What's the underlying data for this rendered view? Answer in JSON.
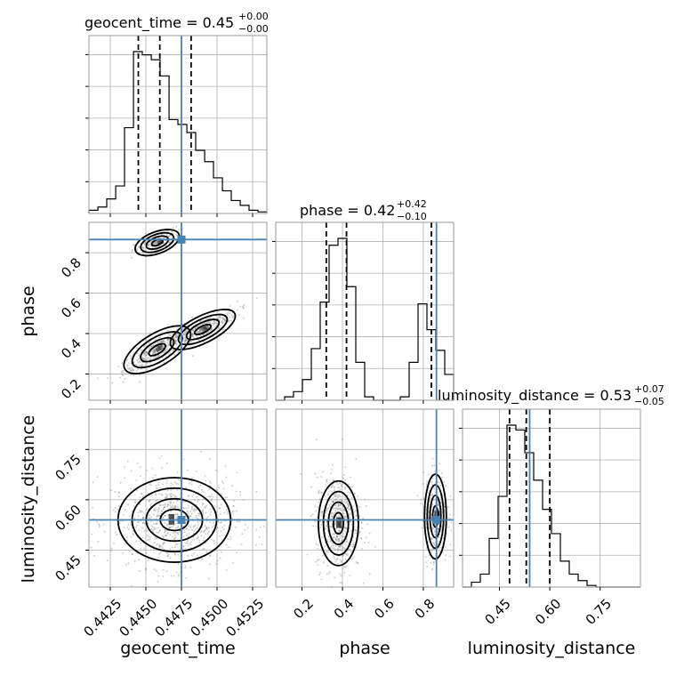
{
  "chart_data": {
    "type": "corner",
    "parameters": [
      "geocent_time",
      "phase",
      "luminosity_distance"
    ],
    "axis_labels": {
      "geocent_time": "geocent_time",
      "phase": "phase",
      "luminosity_distance": "luminosity_distance"
    },
    "ranges": {
      "geocent_time": [
        0.441,
        0.4535
      ],
      "phase": [
        0.07,
        0.95
      ],
      "luminosity_distance": [
        0.34,
        0.87
      ]
    },
    "ticks": {
      "geocent_time": [
        "0.4425",
        "0.4450",
        "0.4475",
        "0.4500",
        "0.4525"
      ],
      "phase": [
        "0.2",
        "0.4",
        "0.6",
        "0.8"
      ],
      "luminosity_distance": [
        "0.45",
        "0.60",
        "0.75"
      ]
    },
    "truths": {
      "geocent_time": 0.4475,
      "phase": 0.865,
      "luminosity_distance": 0.54
    },
    "titles": {
      "geocent_time": {
        "label": "geocent_time = ",
        "value": "0.45",
        "plus": "+0.00",
        "minus": "−0.00"
      },
      "phase": {
        "label": "phase = ",
        "value": "0.42",
        "plus": "+0.42",
        "minus": "−0.10"
      },
      "luminosity_distance": {
        "label": "luminosity_distance = ",
        "value": "0.53",
        "plus": "+0.07",
        "minus": "−0.05"
      }
    },
    "quantiles": {
      "geocent_time": [
        0.44447,
        0.44598,
        0.44818
      ],
      "phase": [
        0.32,
        0.42,
        0.84
      ],
      "luminosity_distance": [
        0.48,
        0.53,
        0.6
      ]
    },
    "histograms": {
      "geocent_time": {
        "edges": [
          0.441,
          0.44163,
          0.44225,
          0.44288,
          0.4435,
          0.44413,
          0.44475,
          0.44538,
          0.446,
          0.44663,
          0.44725,
          0.44788,
          0.4485,
          0.44913,
          0.44975,
          0.45038,
          0.451,
          0.45163,
          0.45225,
          0.45288,
          0.4535
        ],
        "counts": [
          2,
          4,
          9,
          17,
          53,
          100,
          98,
          95,
          85,
          58,
          55,
          50,
          39,
          32,
          22,
          14,
          8,
          5,
          2,
          1
        ]
      },
      "phase": {
        "edges": [
          0.07,
          0.114,
          0.158,
          0.202,
          0.246,
          0.29,
          0.334,
          0.378,
          0.422,
          0.466,
          0.51,
          0.554,
          0.598,
          0.642,
          0.686,
          0.73,
          0.774,
          0.818,
          0.862,
          0.906,
          0.95
        ],
        "counts": [
          0,
          2,
          5,
          12,
          30,
          57,
          90,
          94,
          66,
          22,
          2,
          0,
          0,
          0,
          2,
          22,
          56,
          41,
          29,
          15
        ]
      },
      "luminosity_distance": {
        "edges": [
          0.34,
          0.3665,
          0.393,
          0.4195,
          0.446,
          0.4725,
          0.499,
          0.5255,
          0.552,
          0.5785,
          0.605,
          0.6315,
          0.658,
          0.6845,
          0.711,
          0.7375,
          0.764,
          0.7905,
          0.817,
          0.8435,
          0.87
        ],
        "counts": [
          0,
          3,
          8,
          30,
          56,
          100,
          97,
          83,
          66,
          48,
          33,
          16,
          8,
          4,
          1,
          0,
          0,
          0,
          0,
          0
        ]
      }
    }
  }
}
